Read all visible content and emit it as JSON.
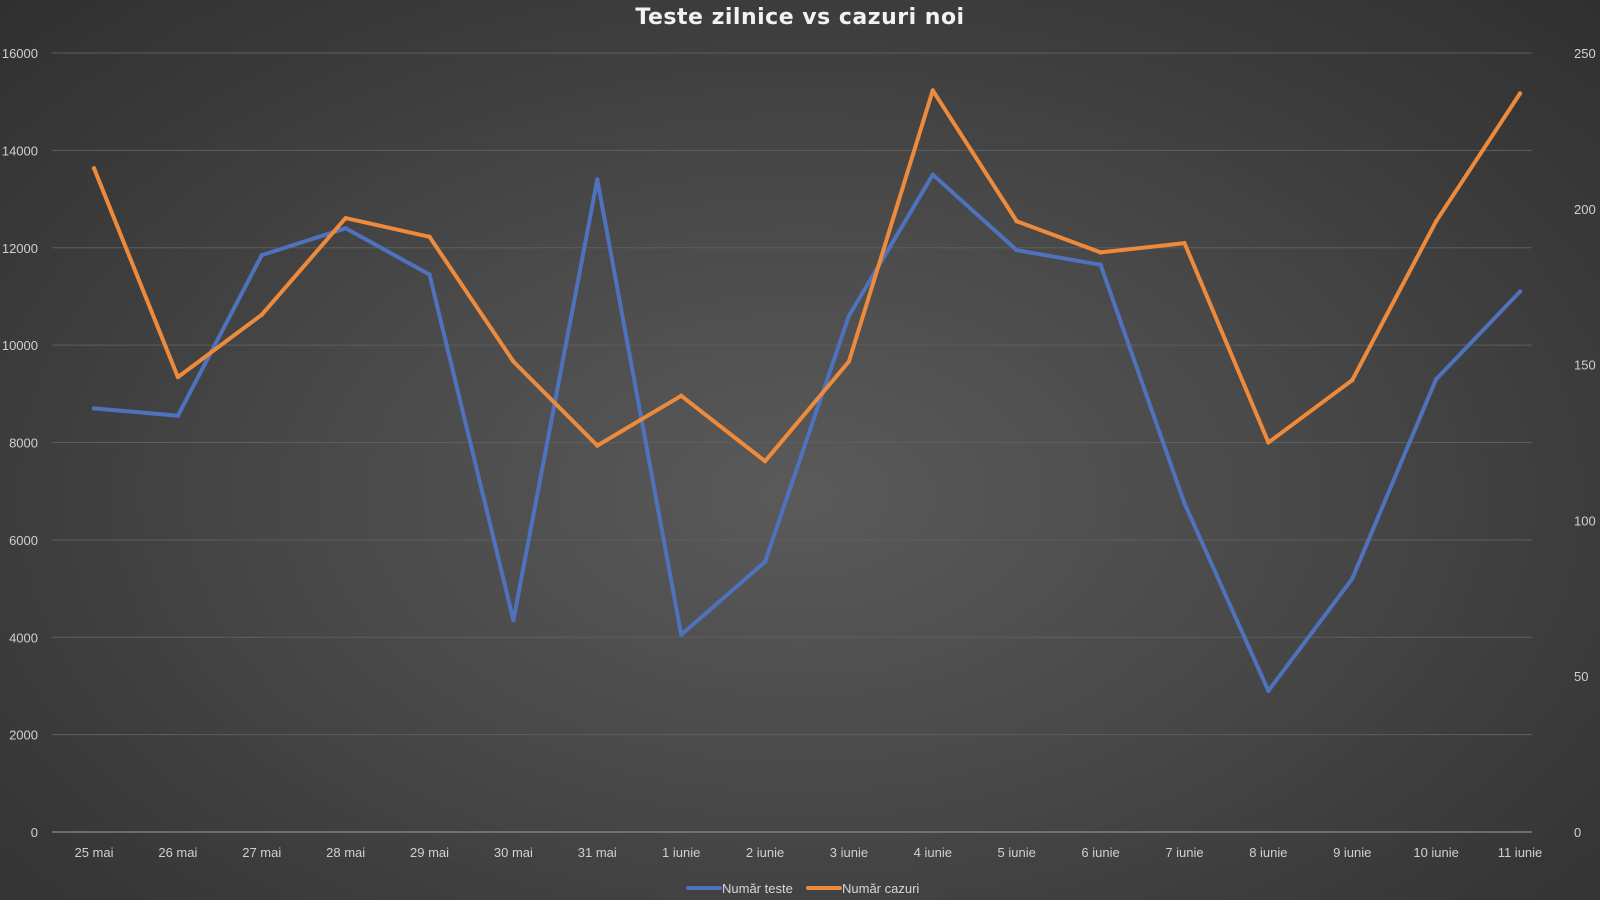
{
  "chart_data": {
    "type": "line",
    "title": "Teste zilnice  vs cazuri  noi",
    "categories": [
      "25 mai",
      "26 mai",
      "27 mai",
      "28 mai",
      "29 mai",
      "30 mai",
      "31 mai",
      "1 iunie",
      "2 iunie",
      "3 iunie",
      "4 iunie",
      "5 iunie",
      "6 iunie",
      "7 iunie",
      "8 iunie",
      "9 iunie",
      "10 iunie",
      "11 iunie"
    ],
    "y_left": {
      "min": 0,
      "max": 16000,
      "ticks": [
        "0",
        "2000",
        "4000",
        "6000",
        "8000",
        "10000",
        "12000",
        "14000",
        "16000"
      ]
    },
    "y_right": {
      "min": 0,
      "max": 250,
      "ticks": [
        "0",
        "50",
        "100",
        "150",
        "200",
        "250"
      ]
    },
    "grid": true,
    "legend_position": "bottom",
    "series": [
      {
        "name": "Număr teste",
        "axis": "left",
        "color": "#4f72bd",
        "values": [
          8700,
          8550,
          11850,
          12400,
          11450,
          4350,
          13400,
          4050,
          5550,
          10600,
          13500,
          11950,
          11650,
          6750,
          2900,
          5200,
          9300,
          11100
        ]
      },
      {
        "name": "Număr cazuri",
        "axis": "right",
        "color": "#ed8a3c",
        "values": [
          213,
          146,
          166,
          197,
          191,
          151,
          124,
          140,
          119,
          151,
          238,
          196,
          186,
          189,
          125,
          145,
          196,
          237
        ]
      }
    ]
  }
}
